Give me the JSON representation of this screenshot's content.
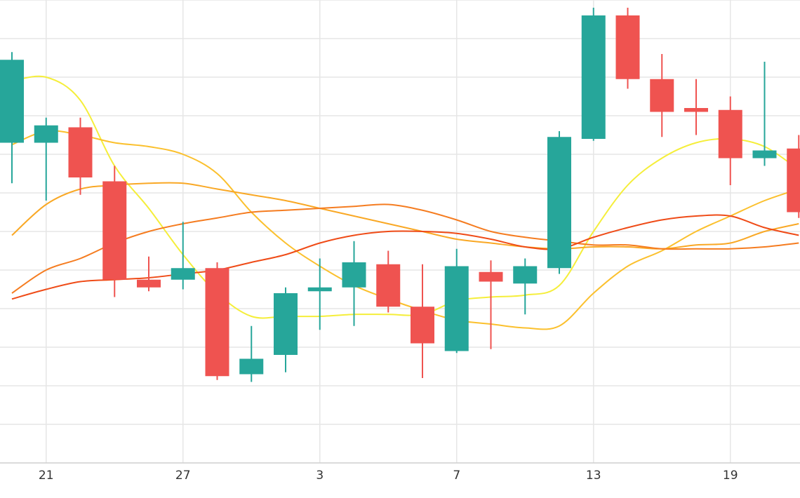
{
  "chart_data": {
    "type": "candlestick",
    "x_ticks": [
      "21",
      "27",
      "3",
      "7",
      "13",
      "19"
    ],
    "y_range": [
      0,
      12
    ],
    "grid": true,
    "colors": {
      "up": "#26a69a",
      "down": "#ef5350",
      "grid": "#e6e6e6",
      "axis": "#cfcfcf"
    },
    "candles": [
      {
        "open": 8.3,
        "high": 10.65,
        "low": 7.25,
        "close": 10.45
      },
      {
        "open": 8.3,
        "high": 8.95,
        "low": 6.8,
        "close": 8.75
      },
      {
        "open": 8.7,
        "high": 8.95,
        "low": 6.95,
        "close": 7.4
      },
      {
        "open": 7.3,
        "high": 7.7,
        "low": 4.3,
        "close": 4.75
      },
      {
        "open": 4.75,
        "high": 5.35,
        "low": 4.45,
        "close": 4.55
      },
      {
        "open": 4.75,
        "high": 6.25,
        "low": 4.5,
        "close": 5.05
      },
      {
        "open": 5.05,
        "high": 5.2,
        "low": 2.15,
        "close": 2.25
      },
      {
        "open": 2.3,
        "high": 3.55,
        "low": 2.1,
        "close": 2.7
      },
      {
        "open": 2.8,
        "high": 4.55,
        "low": 2.35,
        "close": 4.4
      },
      {
        "open": 4.45,
        "high": 5.3,
        "low": 3.45,
        "close": 4.55
      },
      {
        "open": 4.55,
        "high": 5.75,
        "low": 3.55,
        "close": 5.2
      },
      {
        "open": 5.15,
        "high": 5.5,
        "low": 3.9,
        "close": 4.05
      },
      {
        "open": 4.05,
        "high": 5.15,
        "low": 2.2,
        "close": 3.1
      },
      {
        "open": 2.9,
        "high": 5.55,
        "low": 2.85,
        "close": 5.1
      },
      {
        "open": 4.95,
        "high": 5.25,
        "low": 2.95,
        "close": 4.7
      },
      {
        "open": 4.65,
        "high": 5.3,
        "low": 3.85,
        "close": 5.1
      },
      {
        "open": 5.05,
        "high": 8.6,
        "low": 4.9,
        "close": 8.45
      },
      {
        "open": 8.4,
        "high": 11.8,
        "low": 8.35,
        "close": 11.6
      },
      {
        "open": 11.6,
        "high": 11.8,
        "low": 9.7,
        "close": 9.95
      },
      {
        "open": 9.95,
        "high": 10.6,
        "low": 8.45,
        "close": 9.1
      },
      {
        "open": 9.2,
        "high": 9.95,
        "low": 8.5,
        "close": 9.1
      },
      {
        "open": 9.15,
        "high": 9.5,
        "low": 7.2,
        "close": 7.9
      },
      {
        "open": 7.9,
        "high": 10.4,
        "low": 7.7,
        "close": 8.1
      },
      {
        "open": 8.15,
        "high": 8.5,
        "low": 6.35,
        "close": 6.5
      }
    ],
    "moving_averages": [
      {
        "color": "#f5ee3a",
        "values": [
          9.9,
          10.0,
          9.4,
          7.7,
          6.6,
          5.4,
          4.4,
          3.8,
          3.8,
          3.8,
          3.85,
          3.85,
          3.85,
          4.2,
          4.3,
          4.35,
          4.6,
          6.0,
          7.2,
          7.9,
          8.3,
          8.4,
          8.2,
          7.6
        ]
      },
      {
        "color": "#fbc02d",
        "values": [
          8.25,
          8.6,
          8.5,
          8.3,
          8.2,
          8.0,
          7.5,
          6.5,
          5.7,
          5.1,
          4.6,
          4.25,
          3.95,
          3.7,
          3.6,
          3.5,
          3.55,
          4.4,
          5.1,
          5.5,
          6.0,
          6.4,
          6.8,
          7.1
        ]
      },
      {
        "color": "#f9a825",
        "values": [
          5.9,
          6.7,
          7.1,
          7.2,
          7.25,
          7.25,
          7.1,
          6.95,
          6.8,
          6.6,
          6.4,
          6.2,
          6.0,
          5.8,
          5.7,
          5.6,
          5.55,
          5.6,
          5.6,
          5.55,
          5.65,
          5.7,
          6.0,
          6.2
        ]
      },
      {
        "color": "#f57c20",
        "values": [
          4.4,
          5.0,
          5.3,
          5.7,
          6.0,
          6.2,
          6.35,
          6.5,
          6.55,
          6.6,
          6.65,
          6.7,
          6.55,
          6.3,
          6.0,
          5.85,
          5.75,
          5.65,
          5.65,
          5.55,
          5.55,
          5.55,
          5.6,
          5.7
        ]
      },
      {
        "color": "#ef4b17",
        "values": [
          4.25,
          4.5,
          4.7,
          4.75,
          4.8,
          4.9,
          5.0,
          5.2,
          5.4,
          5.7,
          5.9,
          6.0,
          6.0,
          5.95,
          5.8,
          5.6,
          5.55,
          5.85,
          6.1,
          6.3,
          6.4,
          6.4,
          6.1,
          5.9
        ]
      }
    ]
  }
}
